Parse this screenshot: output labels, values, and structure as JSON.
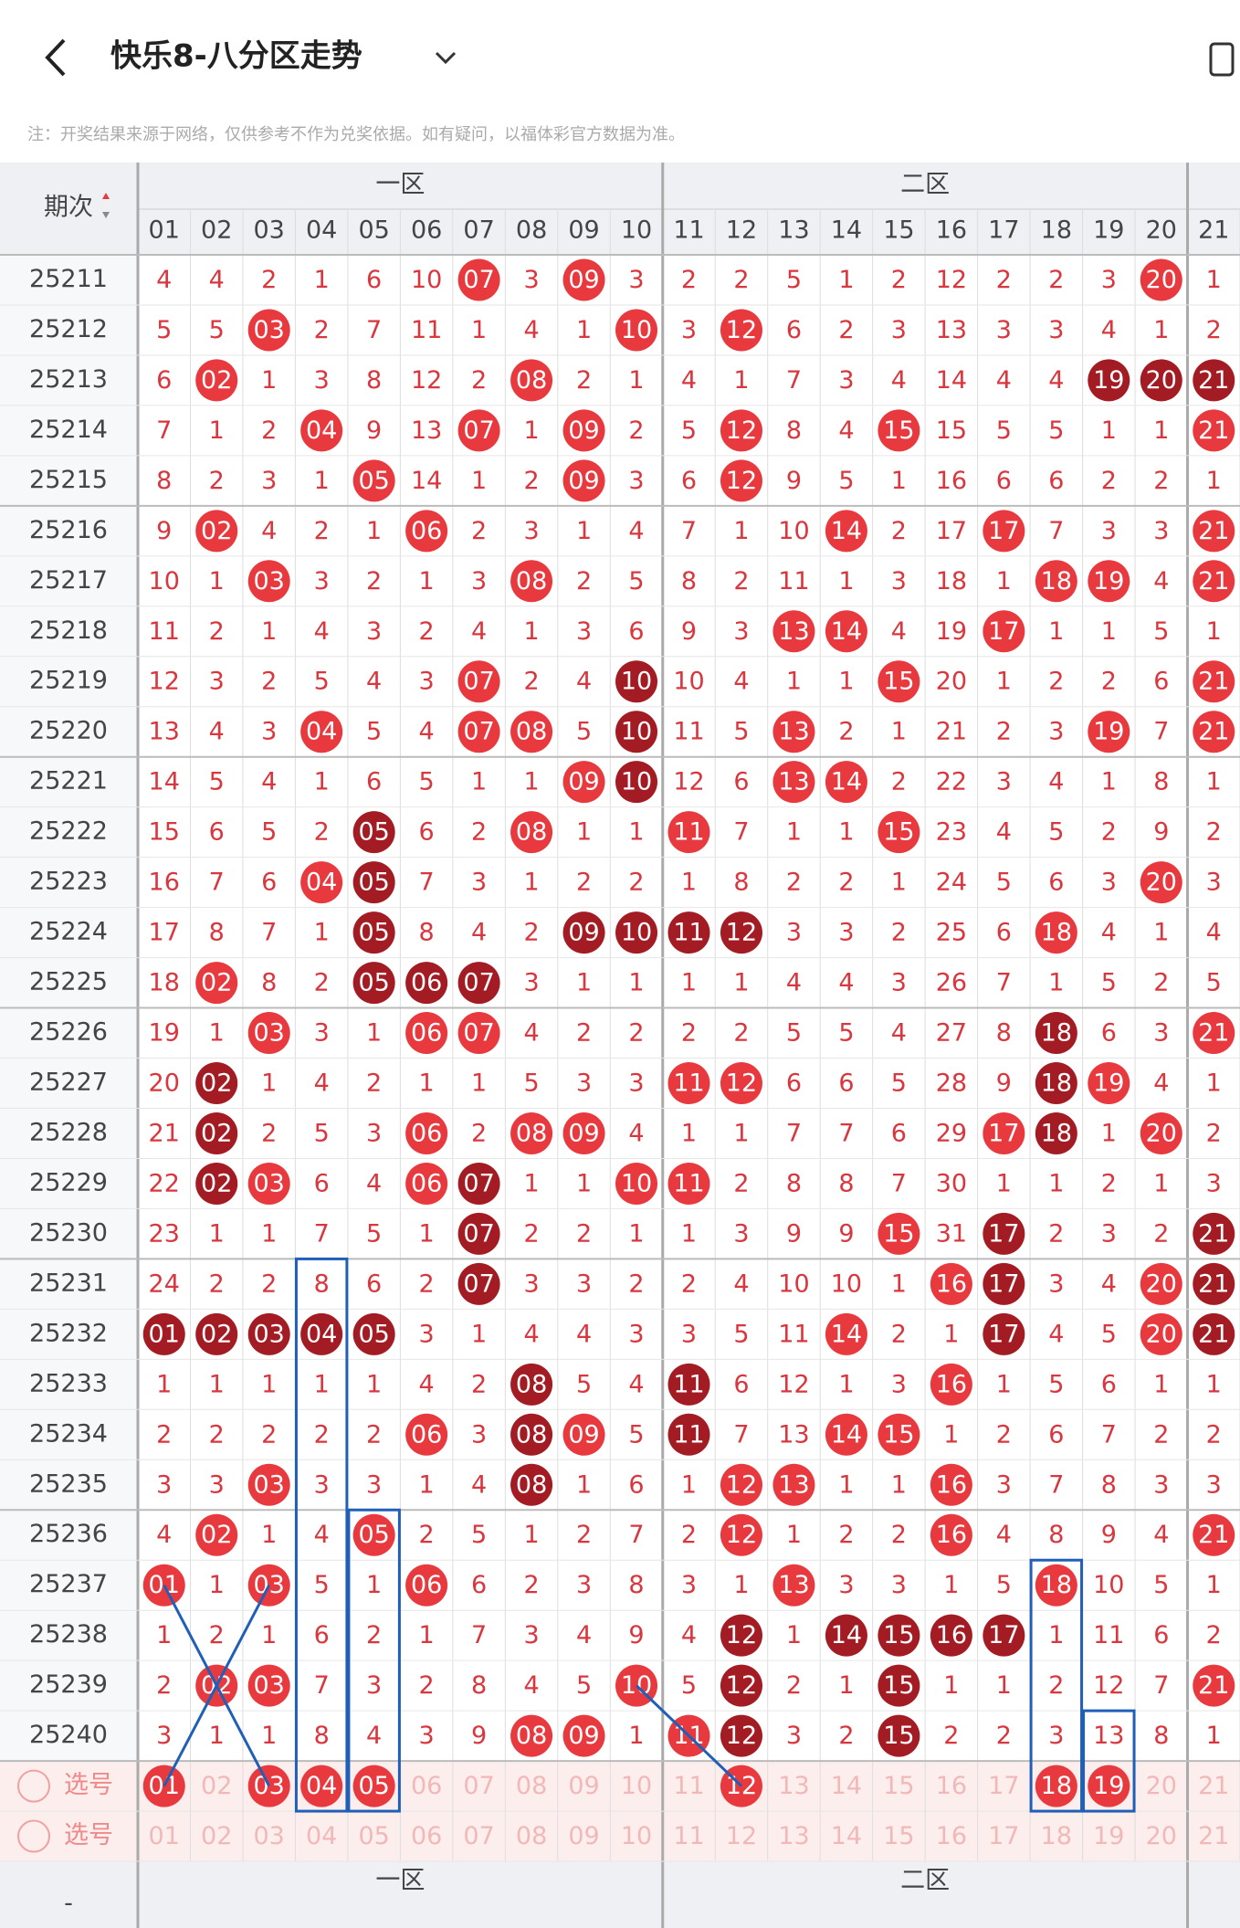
{
  "header": {
    "title": "快乐8-八分区走势",
    "note": "注：开奖结果来源于网络，仅供参考不作为兑奖依据。如有疑问，以福体彩官方数据为准。"
  },
  "table": {
    "period_label": "期次",
    "zones": [
      "一区",
      "二区"
    ],
    "columns": [
      "01",
      "02",
      "03",
      "04",
      "05",
      "06",
      "07",
      "08",
      "09",
      "10",
      "11",
      "12",
      "13",
      "14",
      "15",
      "16",
      "17",
      "18",
      "19",
      "20",
      "21"
    ],
    "rows": [
      {
        "period": "25211",
        "cells": [
          4,
          4,
          2,
          1,
          6,
          10,
          "07",
          3,
          "09",
          3,
          2,
          2,
          5,
          1,
          2,
          12,
          2,
          2,
          3,
          "20",
          1
        ],
        "hits": [
          6,
          8,
          19
        ],
        "dark": []
      },
      {
        "period": "25212",
        "cells": [
          5,
          5,
          "03",
          2,
          7,
          11,
          1,
          4,
          1,
          "10",
          3,
          "12",
          6,
          2,
          3,
          13,
          3,
          3,
          4,
          1,
          2
        ],
        "hits": [
          2,
          9,
          11
        ],
        "dark": []
      },
      {
        "period": "25213",
        "cells": [
          6,
          "02",
          1,
          3,
          8,
          12,
          2,
          "08",
          2,
          1,
          4,
          1,
          7,
          3,
          4,
          14,
          4,
          4,
          "19",
          "20",
          "21"
        ],
        "hits": [
          1,
          7,
          18,
          19,
          20
        ],
        "dark": [
          18,
          19,
          20
        ]
      },
      {
        "period": "25214",
        "cells": [
          7,
          1,
          2,
          "04",
          9,
          13,
          "07",
          1,
          "09",
          2,
          5,
          "12",
          8,
          4,
          "15",
          15,
          5,
          5,
          1,
          1,
          "21"
        ],
        "hits": [
          3,
          6,
          8,
          11,
          14,
          20
        ],
        "dark": []
      },
      {
        "period": "25215",
        "cells": [
          8,
          2,
          3,
          1,
          "05",
          14,
          1,
          2,
          "09",
          3,
          6,
          "12",
          9,
          5,
          1,
          16,
          6,
          6,
          2,
          2,
          1
        ],
        "hits": [
          4,
          8,
          11
        ],
        "dark": []
      },
      {
        "period": "25216",
        "cells": [
          9,
          "02",
          4,
          2,
          1,
          "06",
          2,
          3,
          1,
          4,
          7,
          1,
          10,
          "14",
          2,
          17,
          "17",
          7,
          3,
          3,
          "21"
        ],
        "hits": [
          1,
          5,
          13,
          16,
          20
        ],
        "dark": []
      },
      {
        "period": "25217",
        "cells": [
          10,
          1,
          "03",
          3,
          2,
          1,
          3,
          "08",
          2,
          5,
          8,
          2,
          11,
          1,
          3,
          18,
          1,
          "18",
          "19",
          4,
          "21"
        ],
        "hits": [
          2,
          7,
          17,
          18,
          20
        ],
        "dark": []
      },
      {
        "period": "25218",
        "cells": [
          11,
          2,
          1,
          4,
          3,
          2,
          4,
          1,
          3,
          6,
          9,
          3,
          "13",
          "14",
          4,
          19,
          "17",
          1,
          1,
          5,
          1
        ],
        "hits": [
          12,
          13,
          16
        ],
        "dark": []
      },
      {
        "period": "25219",
        "cells": [
          12,
          3,
          2,
          5,
          4,
          3,
          "07",
          2,
          4,
          "10",
          10,
          4,
          1,
          1,
          "15",
          20,
          1,
          2,
          2,
          6,
          "21"
        ],
        "hits": [
          6,
          9,
          14,
          20
        ],
        "dark": [
          9
        ]
      },
      {
        "period": "25220",
        "cells": [
          13,
          4,
          3,
          "04",
          5,
          4,
          "07",
          "08",
          5,
          "10",
          11,
          5,
          "13",
          2,
          1,
          21,
          2,
          3,
          "19",
          7,
          "21"
        ],
        "hits": [
          3,
          6,
          7,
          9,
          12,
          18,
          20
        ],
        "dark": [
          9
        ]
      },
      {
        "period": "25221",
        "cells": [
          14,
          5,
          4,
          1,
          6,
          5,
          1,
          1,
          "09",
          "10",
          12,
          6,
          "13",
          "14",
          2,
          22,
          3,
          4,
          1,
          8,
          1
        ],
        "hits": [
          8,
          9,
          12,
          13
        ],
        "dark": [
          9
        ]
      },
      {
        "period": "25222",
        "cells": [
          15,
          6,
          5,
          2,
          "05",
          6,
          2,
          "08",
          1,
          1,
          "11",
          7,
          1,
          1,
          "15",
          23,
          4,
          5,
          2,
          9,
          2
        ],
        "hits": [
          4,
          7,
          10,
          14
        ],
        "dark": [
          4
        ]
      },
      {
        "period": "25223",
        "cells": [
          16,
          7,
          6,
          "04",
          "05",
          7,
          3,
          1,
          2,
          2,
          1,
          8,
          2,
          2,
          1,
          24,
          5,
          6,
          3,
          "20",
          3
        ],
        "hits": [
          3,
          4,
          19
        ],
        "dark": [
          4
        ]
      },
      {
        "period": "25224",
        "cells": [
          17,
          8,
          7,
          1,
          "05",
          8,
          4,
          2,
          "09",
          "10",
          "11",
          "12",
          3,
          3,
          2,
          25,
          6,
          "18",
          4,
          1,
          4
        ],
        "hits": [
          4,
          8,
          9,
          10,
          11,
          17
        ],
        "dark": [
          4,
          8,
          9,
          10,
          11
        ]
      },
      {
        "period": "25225",
        "cells": [
          18,
          "02",
          8,
          2,
          "05",
          "06",
          "07",
          3,
          1,
          1,
          1,
          1,
          4,
          4,
          3,
          26,
          7,
          1,
          5,
          2,
          5
        ],
        "hits": [
          1,
          4,
          5,
          6
        ],
        "dark": [
          4,
          5,
          6
        ]
      },
      {
        "period": "25226",
        "cells": [
          19,
          1,
          "03",
          3,
          1,
          "06",
          "07",
          4,
          2,
          2,
          2,
          2,
          5,
          5,
          4,
          27,
          8,
          "18",
          6,
          3,
          "21"
        ],
        "hits": [
          2,
          5,
          6,
          17,
          20
        ],
        "dark": [
          17
        ]
      },
      {
        "period": "25227",
        "cells": [
          20,
          "02",
          1,
          4,
          2,
          1,
          1,
          5,
          3,
          3,
          "11",
          "12",
          6,
          6,
          5,
          28,
          9,
          "18",
          "19",
          4,
          1
        ],
        "hits": [
          1,
          10,
          11,
          17,
          18
        ],
        "dark": [
          1,
          17
        ]
      },
      {
        "period": "25228",
        "cells": [
          21,
          "02",
          2,
          5,
          3,
          "06",
          2,
          "08",
          "09",
          4,
          1,
          1,
          7,
          7,
          6,
          29,
          "17",
          "18",
          1,
          "20",
          2
        ],
        "hits": [
          1,
          5,
          7,
          8,
          16,
          17,
          19
        ],
        "dark": [
          1,
          17
        ]
      },
      {
        "period": "25229",
        "cells": [
          22,
          "02",
          "03",
          6,
          4,
          "06",
          "07",
          1,
          1,
          "10",
          "11",
          2,
          8,
          8,
          7,
          30,
          1,
          1,
          2,
          1,
          3
        ],
        "hits": [
          1,
          2,
          5,
          6,
          9,
          10
        ],
        "dark": [
          1,
          6
        ]
      },
      {
        "period": "25230",
        "cells": [
          23,
          1,
          1,
          7,
          5,
          1,
          "07",
          2,
          2,
          1,
          1,
          3,
          9,
          9,
          "15",
          31,
          "17",
          2,
          3,
          2,
          "21"
        ],
        "hits": [
          6,
          14,
          16,
          20
        ],
        "dark": [
          6,
          16,
          20
        ]
      },
      {
        "period": "25231",
        "cells": [
          24,
          2,
          2,
          8,
          6,
          2,
          "07",
          3,
          3,
          2,
          2,
          4,
          10,
          10,
          1,
          "16",
          "17",
          3,
          4,
          "20",
          "21"
        ],
        "hits": [
          6,
          15,
          16,
          19,
          20
        ],
        "dark": [
          6,
          16,
          20
        ]
      },
      {
        "period": "25232",
        "cells": [
          "01",
          "02",
          "03",
          "04",
          "05",
          3,
          1,
          4,
          4,
          3,
          3,
          5,
          11,
          "14",
          2,
          1,
          "17",
          4,
          5,
          "20",
          "21"
        ],
        "hits": [
          0,
          1,
          2,
          3,
          4,
          13,
          16,
          19,
          20
        ],
        "dark": [
          0,
          1,
          2,
          3,
          4,
          16,
          20
        ]
      },
      {
        "period": "25233",
        "cells": [
          1,
          1,
          1,
          1,
          1,
          4,
          2,
          "08",
          5,
          4,
          "11",
          6,
          12,
          1,
          3,
          "16",
          1,
          5,
          6,
          1,
          1
        ],
        "hits": [
          7,
          10,
          15
        ],
        "dark": [
          7,
          10
        ]
      },
      {
        "period": "25234",
        "cells": [
          2,
          2,
          2,
          2,
          2,
          "06",
          3,
          "08",
          "09",
          5,
          "11",
          7,
          13,
          "14",
          "15",
          1,
          2,
          6,
          7,
          2,
          2
        ],
        "hits": [
          5,
          7,
          8,
          10,
          13,
          14
        ],
        "dark": [
          7,
          10
        ]
      },
      {
        "period": "25235",
        "cells": [
          3,
          3,
          "03",
          3,
          3,
          1,
          4,
          "08",
          1,
          6,
          1,
          "12",
          "13",
          1,
          1,
          "16",
          3,
          7,
          8,
          3,
          3
        ],
        "hits": [
          2,
          7,
          11,
          12,
          15
        ],
        "dark": [
          7
        ]
      },
      {
        "period": "25236",
        "cells": [
          4,
          "02",
          1,
          4,
          "05",
          2,
          5,
          1,
          2,
          7,
          2,
          "12",
          1,
          2,
          2,
          "16",
          4,
          8,
          9,
          4,
          "21"
        ],
        "hits": [
          1,
          4,
          11,
          15,
          20
        ],
        "dark": []
      },
      {
        "period": "25237",
        "cells": [
          "01",
          1,
          "03",
          5,
          1,
          "06",
          6,
          2,
          3,
          8,
          3,
          1,
          "13",
          3,
          3,
          1,
          5,
          "18",
          10,
          5,
          1
        ],
        "hits": [
          0,
          2,
          5,
          12,
          17
        ],
        "dark": []
      },
      {
        "period": "25238",
        "cells": [
          1,
          2,
          1,
          6,
          2,
          1,
          7,
          3,
          4,
          9,
          4,
          "12",
          1,
          "14",
          "15",
          "16",
          "17",
          1,
          11,
          6,
          2
        ],
        "hits": [
          11,
          13,
          14,
          15,
          16
        ],
        "dark": [
          11,
          13,
          14,
          15,
          16
        ]
      },
      {
        "period": "25239",
        "cells": [
          2,
          "02",
          "03",
          7,
          3,
          2,
          8,
          4,
          5,
          "10",
          5,
          "12",
          2,
          1,
          "15",
          1,
          1,
          2,
          12,
          7,
          "21"
        ],
        "hits": [
          1,
          2,
          9,
          11,
          14,
          20
        ],
        "dark": [
          11,
          14
        ]
      },
      {
        "period": "25240",
        "cells": [
          3,
          1,
          1,
          8,
          4,
          3,
          9,
          "08",
          "09",
          1,
          "11",
          "12",
          3,
          2,
          "15",
          2,
          2,
          3,
          13,
          8,
          1
        ],
        "hits": [
          7,
          8,
          10,
          11,
          14
        ],
        "dark": [
          11,
          14
        ]
      }
    ],
    "selection_rows": [
      {
        "label": "选号",
        "selected": [
          0,
          2,
          3,
          4,
          11,
          17,
          18
        ]
      },
      {
        "label": "选号"
      }
    ],
    "footer_label": "-"
  }
}
